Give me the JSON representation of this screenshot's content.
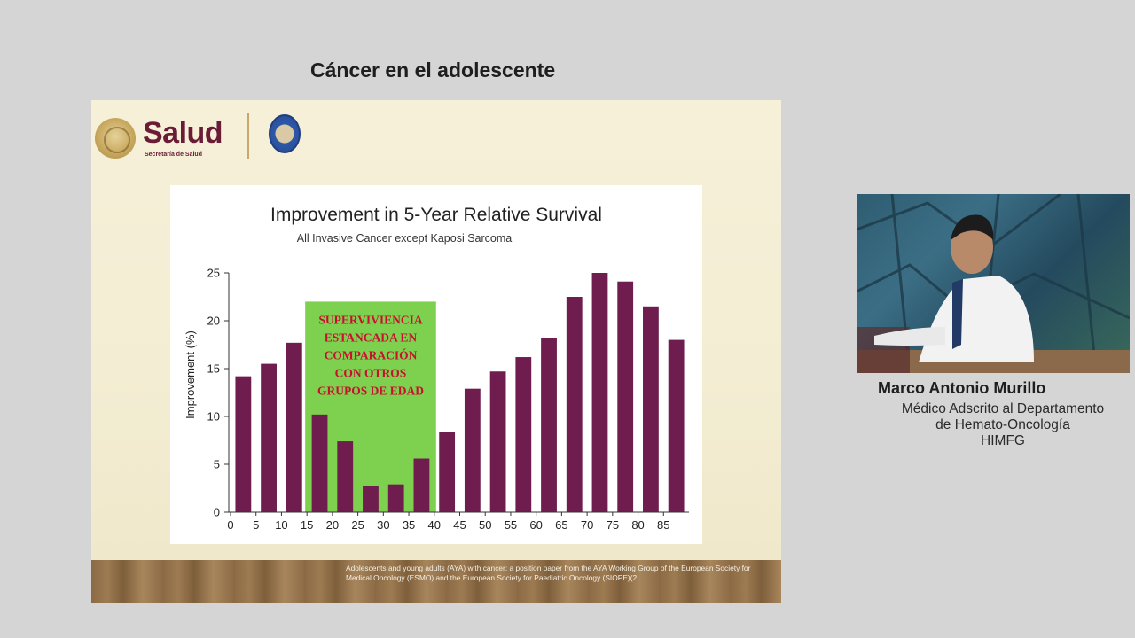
{
  "page_title": "Cáncer en el adolescente",
  "slide": {
    "logo_word": "Salud",
    "logo_sub": "Secretaría de Salud",
    "footer_text": "Adolescents and young adults (AYA) with cancer: a position paper from the AYA Working Group of the European Society for Medical Oncology (ESMO) and the European Society for Paediatric Oncology (SIOPE)(2"
  },
  "chart_data": {
    "type": "bar",
    "title": "Improvement in 5-Year Relative Survival",
    "subtitle": "All Invasive Cancer except Kaposi Sarcoma",
    "xlabel": "",
    "ylabel": "Improvement (%)",
    "categories": [
      "0",
      "5",
      "10",
      "15",
      "20",
      "25",
      "30",
      "35",
      "40",
      "45",
      "50",
      "55",
      "60",
      "65",
      "70",
      "75",
      "80",
      "85"
    ],
    "values": [
      14.2,
      15.5,
      17.7,
      10.2,
      7.4,
      2.7,
      2.9,
      5.6,
      8.4,
      12.9,
      14.7,
      16.2,
      18.2,
      22.5,
      25.0,
      24.1,
      21.5,
      18.0
    ],
    "ylim": [
      0,
      25
    ],
    "yticks": [
      0,
      5,
      10,
      15,
      20,
      25
    ],
    "bar_color": "#6f1d4f",
    "grid": false,
    "legend": "none",
    "annotation": {
      "lines": [
        "SUPERVIVIENCIA",
        "ESTANCADA EN",
        "COMPARACIÓN",
        "CON OTROS",
        "GRUPOS DE EDAD"
      ],
      "x_range": [
        15,
        40
      ],
      "box_color": "#7ed04f",
      "text_color": "#c8102e"
    }
  },
  "speaker": {
    "name": "Marco Antonio Murillo",
    "role_lines": [
      "Médico Adscrito al Departamento",
      "de Hemato-Oncología",
      "HIMFG"
    ]
  }
}
